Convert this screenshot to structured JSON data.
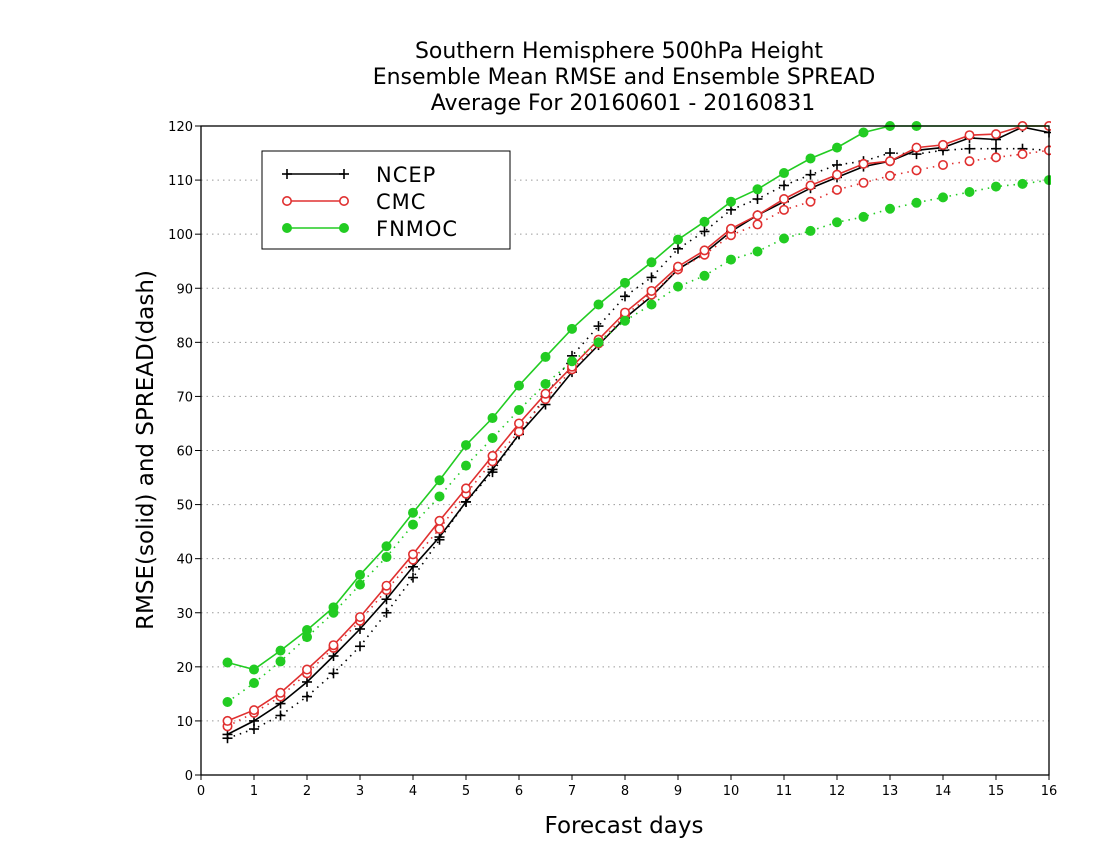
{
  "chart_data": {
    "type": "line",
    "title_lines": [
      "Southern Hemisphere 500hPa Height",
      "Ensemble Mean RMSE and Ensemble SPREAD",
      "Average For 20160601 - 20160831"
    ],
    "xlabel": "Forecast days",
    "ylabel": "RMSE(solid) and SPREAD(dash)",
    "xlim": [
      0,
      16
    ],
    "ylim": [
      0,
      120
    ],
    "x_ticks": [
      "0",
      "1",
      "2",
      "3",
      "4",
      "5",
      "6",
      "7",
      "8",
      "9",
      "10",
      "11",
      "12",
      "13",
      "14",
      "15",
      "16"
    ],
    "y_ticks": [
      "0",
      "10",
      "20",
      "30",
      "40",
      "50",
      "60",
      "70",
      "80",
      "90",
      "100",
      "110",
      "120"
    ],
    "grid": "horizontal dotted",
    "legend_position": "top-left",
    "x": [
      0.5,
      1,
      1.5,
      2,
      2.5,
      3,
      3.5,
      4,
      4.5,
      5,
      5.5,
      6,
      6.5,
      7,
      7.5,
      8,
      8.5,
      9,
      9.5,
      10,
      10.5,
      11,
      11.5,
      12,
      12.5,
      13,
      13.5,
      14,
      14.5,
      15,
      15.5,
      16
    ],
    "series": [
      {
        "name": "NCEP",
        "color": "#000000",
        "marker": "plus",
        "rmse": [
          7.5,
          10,
          13.2,
          17.2,
          22,
          27,
          32.5,
          38.5,
          44,
          50.5,
          56.5,
          63,
          68.5,
          74.5,
          79.5,
          84.5,
          88.5,
          93.5,
          96.5,
          100.5,
          103.5,
          106,
          108.5,
          110.5,
          112.5,
          113.5,
          115.5,
          116,
          117.8,
          117.5,
          119.8,
          118.8
        ],
        "spread": [
          6.8,
          8.5,
          11,
          14.5,
          18.8,
          23.8,
          30,
          36.5,
          43.5,
          50.5,
          56,
          63,
          70,
          77.5,
          83,
          88.5,
          92,
          97.3,
          100.5,
          104.5,
          106.5,
          109,
          111,
          112.8,
          113.5,
          115,
          114.8,
          115.5,
          115.8,
          115.8,
          115.8,
          115.5
        ]
      },
      {
        "name": "CMC",
        "color": "#e03030",
        "marker": "open-circle",
        "rmse": [
          10,
          12,
          15.2,
          19.5,
          24,
          29.2,
          35,
          40.8,
          47,
          53,
          59,
          65,
          70.5,
          75.5,
          80.5,
          85.5,
          89.5,
          94,
          97,
          101,
          103.5,
          106.5,
          109,
          111,
          113,
          113.5,
          116,
          116.5,
          118.3,
          118.5,
          120,
          120
        ],
        "spread": [
          9,
          11.5,
          14.5,
          18.8,
          23.5,
          28.5,
          34.2,
          39.8,
          45.5,
          52,
          58,
          63.5,
          69.5,
          75,
          79.8,
          85,
          88.8,
          93.5,
          96.2,
          99.8,
          101.8,
          104.5,
          106,
          108.2,
          109.5,
          110.8,
          111.8,
          112.8,
          113.5,
          114.2,
          114.8,
          115.5
        ]
      },
      {
        "name": "FNMOC",
        "color": "#22cc22",
        "marker": "filled-circle",
        "rmse": [
          20.8,
          19.5,
          23,
          26.8,
          31,
          37,
          42.3,
          48.5,
          54.5,
          61,
          66,
          72,
          77.3,
          82.5,
          87,
          91,
          94.8,
          99,
          102.3,
          106,
          108.3,
          111.3,
          114,
          116,
          118.8,
          120,
          120.5,
          121,
          121,
          121,
          121,
          121
        ],
        "spread": [
          13.5,
          17,
          21,
          25.5,
          30,
          35.2,
          40.3,
          46.3,
          51.5,
          57.2,
          62.3,
          67.5,
          72.3,
          76.5,
          80,
          84,
          87,
          90.3,
          92.3,
          95.3,
          96.8,
          99.2,
          100.6,
          102.2,
          103.2,
          104.7,
          105.8,
          106.8,
          107.8,
          108.8,
          109.3,
          110
        ]
      }
    ]
  }
}
